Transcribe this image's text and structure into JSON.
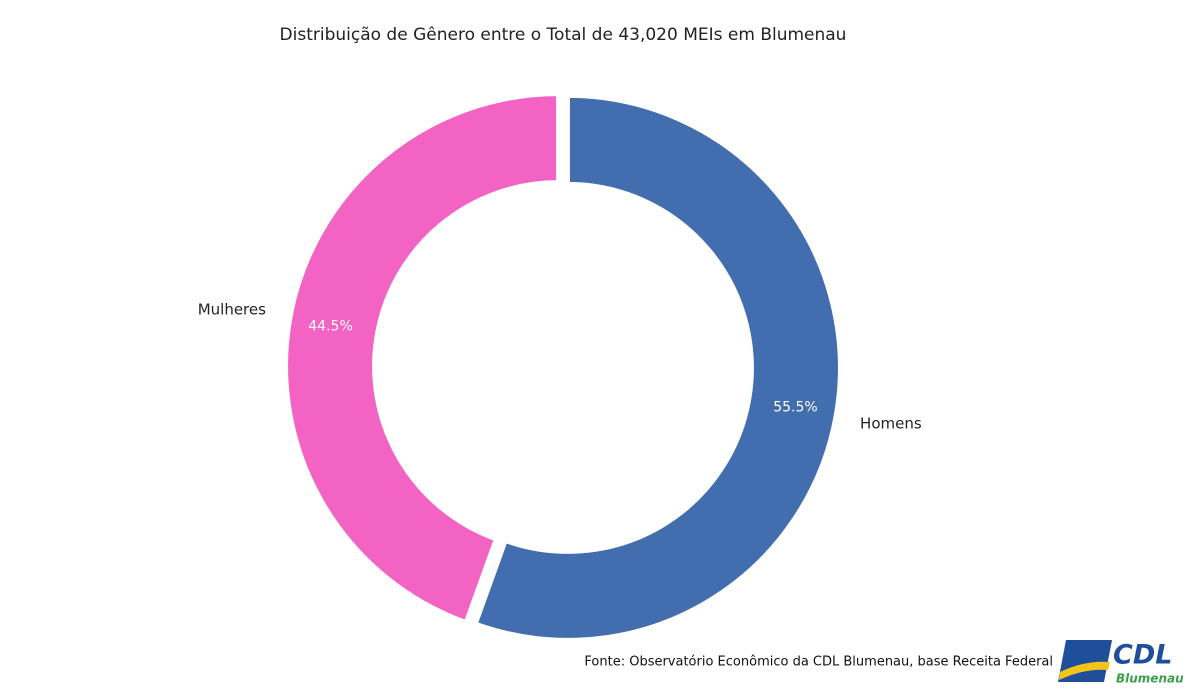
{
  "chart_data": {
    "type": "donut",
    "title": "Distribuição de Gênero entre o Total de 43,020 MEIs em Blumenau",
    "categories": [
      "Homens",
      "Mulheres"
    ],
    "values": [
      55.5,
      44.5
    ],
    "value_labels": [
      "55.5%",
      "44.5%"
    ],
    "colors": [
      "#426dae",
      "#f263c3"
    ]
  },
  "footer": {
    "source": "Fonte: Observatório Econômico da CDL Blumenau, base Receita Federal",
    "logo_title": "CDL",
    "logo_subtitle": "Blumenau"
  }
}
